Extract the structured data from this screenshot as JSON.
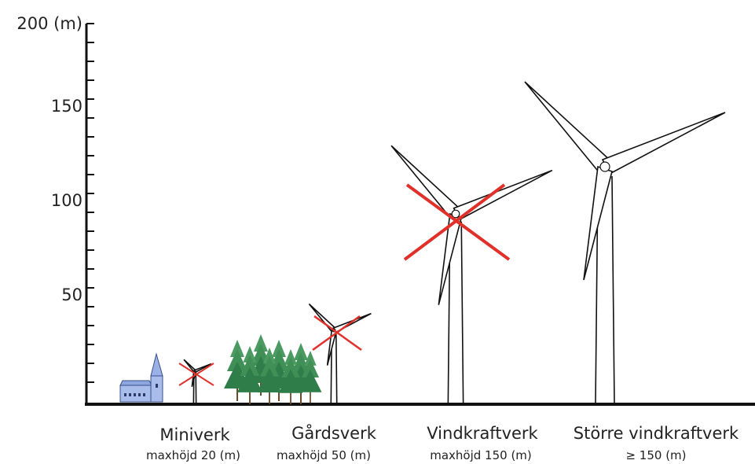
{
  "axis": {
    "labels": [
      "50",
      "100",
      "150",
      "200 (m)"
    ]
  },
  "items": [
    {
      "name": "Miniverk",
      "limit": "maxhöjd 20 (m)"
    },
    {
      "name": "Gårdsverk",
      "limit": "maxhöjd 50 (m)"
    },
    {
      "name": "Vindkraftverk",
      "limit": "maxhöjd 150 (m)"
    },
    {
      "name": "Större vindkraftverk",
      "limit": "≥ 150 (m)"
    }
  ]
}
